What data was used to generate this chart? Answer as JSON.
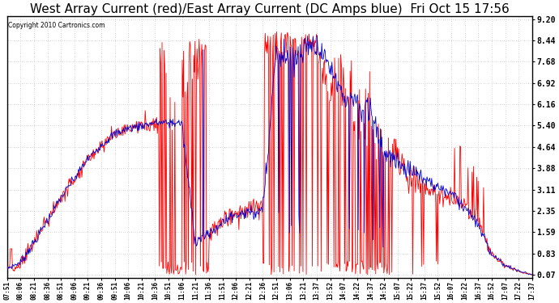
{
  "title": "West Array Current (red)/East Array Current (DC Amps blue)  Fri Oct 15 17:56",
  "copyright": "Copyright 2010 Cartronics.com",
  "yticks": [
    0.07,
    0.83,
    1.59,
    2.35,
    3.11,
    3.88,
    4.64,
    5.4,
    6.16,
    6.92,
    7.68,
    8.44,
    9.2
  ],
  "ymin": 0.07,
  "ymax": 9.2,
  "background_color": "#ffffff",
  "grid_color": "#c8c8c8",
  "red_color": "#ff0000",
  "blue_color": "#0000cc",
  "title_fontsize": 11,
  "xtick_labels": [
    "07:51",
    "08:06",
    "08:21",
    "08:36",
    "08:51",
    "09:06",
    "09:21",
    "09:36",
    "09:51",
    "10:06",
    "10:21",
    "10:36",
    "10:51",
    "11:06",
    "11:21",
    "11:36",
    "11:51",
    "12:06",
    "12:21",
    "12:36",
    "12:51",
    "13:06",
    "13:21",
    "13:37",
    "13:52",
    "14:07",
    "14:22",
    "14:37",
    "14:52",
    "15:07",
    "15:22",
    "15:37",
    "15:52",
    "16:07",
    "16:22",
    "16:37",
    "16:52",
    "17:07",
    "17:22",
    "17:37"
  ]
}
